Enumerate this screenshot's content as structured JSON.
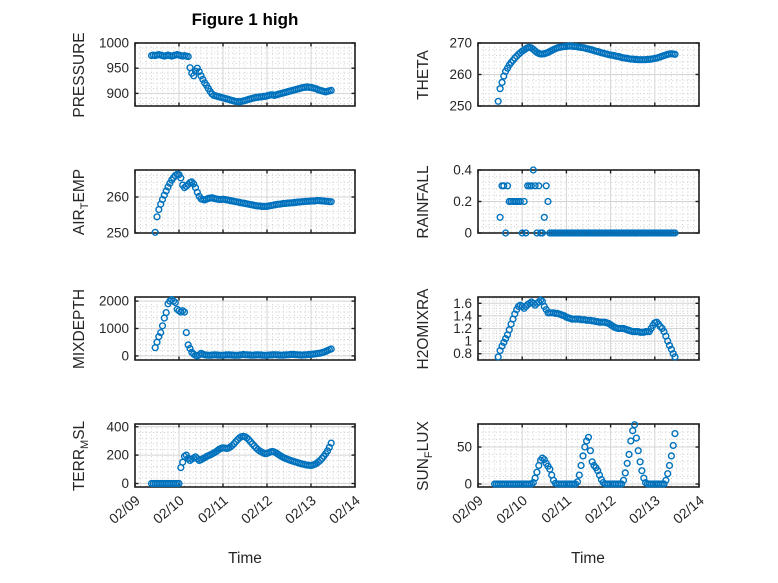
{
  "figure": {
    "title": "Figure 1 high",
    "xlabel": "Time",
    "marker_color": "#0072BD",
    "axis_color": "#1f1f1f",
    "grid_color": "#d4d4d4",
    "minor_grid_color": "#c9c9c9"
  },
  "chart_data": {
    "type": "scatter",
    "layout": "4 rows x 2 columns, shared time axis",
    "x_axis": {
      "label": "Time",
      "tick_labels": [
        "02/09",
        "02/10",
        "02/11",
        "02/12",
        "02/13",
        "02/14"
      ],
      "tick_values": [
        0,
        1,
        2,
        3,
        4,
        5
      ],
      "xlim": [
        0,
        5
      ],
      "minor_step": 0.125,
      "unit": "days since 02/09 00:00"
    },
    "x": [
      0.375,
      0.417,
      0.458,
      0.5,
      0.542,
      0.583,
      0.625,
      0.667,
      0.708,
      0.75,
      0.792,
      0.833,
      0.875,
      0.917,
      0.958,
      1.0,
      1.042,
      1.083,
      1.125,
      1.167,
      1.208,
      1.25,
      1.292,
      1.333,
      1.375,
      1.417,
      1.458,
      1.5,
      1.542,
      1.583,
      1.625,
      1.667,
      1.708,
      1.75,
      1.792,
      1.833,
      1.875,
      1.917,
      1.958,
      2.0,
      2.042,
      2.083,
      2.125,
      2.167,
      2.208,
      2.25,
      2.292,
      2.333,
      2.375,
      2.417,
      2.458,
      2.5,
      2.542,
      2.583,
      2.625,
      2.667,
      2.708,
      2.75,
      2.792,
      2.833,
      2.875,
      2.917,
      2.958,
      3.0,
      3.042,
      3.083,
      3.125,
      3.167,
      3.208,
      3.25,
      3.292,
      3.333,
      3.375,
      3.417,
      3.458,
      3.5,
      3.542,
      3.583,
      3.625,
      3.667,
      3.708,
      3.75,
      3.792,
      3.833,
      3.875,
      3.917,
      3.958,
      4.0,
      4.042,
      4.083,
      4.125,
      4.167,
      4.208,
      4.25,
      4.292,
      4.333,
      4.375,
      4.417,
      4.458
    ],
    "subplots": [
      {
        "name": "PRESSURE",
        "ylabel": {
          "pre": "PRESSURE",
          "sub": "",
          "post": ""
        },
        "ylim": [
          875,
          1000
        ],
        "yticks": [
          900,
          950,
          1000
        ],
        "ytick_labels": [
          "900",
          "950",
          "1000"
        ],
        "y_minor_step": 10,
        "values": [
          975,
          976,
          975,
          976,
          977,
          976,
          975,
          974,
          975,
          976,
          975,
          974,
          975,
          976,
          977,
          976,
          975,
          974,
          975,
          974,
          973,
          951,
          940,
          935,
          944,
          950,
          943,
          935,
          928,
          921,
          916,
          910,
          904,
          899,
          896,
          895,
          894,
          893,
          892,
          891,
          890,
          889,
          888,
          887,
          886,
          885,
          884,
          884,
          883,
          884,
          885,
          886,
          887,
          888,
          889,
          890,
          891,
          892,
          892,
          893,
          893,
          894,
          894,
          895,
          896,
          897,
          897,
          896,
          897,
          898,
          899,
          900,
          901,
          902,
          903,
          904,
          905,
          906,
          907,
          908,
          909,
          910,
          911,
          912,
          912,
          913,
          912,
          912,
          911,
          910,
          909,
          907,
          906,
          905,
          904,
          903,
          904,
          905,
          906
        ]
      },
      {
        "name": "THETA",
        "ylabel": {
          "pre": "THETA",
          "sub": "",
          "post": ""
        },
        "ylim": [
          250,
          270
        ],
        "yticks": [
          250,
          260,
          270
        ],
        "ytick_labels": [
          "250",
          "260",
          "270"
        ],
        "y_minor_step": 2,
        "values": [
          null,
          null,
          251.5,
          255.5,
          257.5,
          259.5,
          261,
          262,
          263,
          263.8,
          264.5,
          265.2,
          265.8,
          266.4,
          266.9,
          267.4,
          267.8,
          268.2,
          268.5,
          268.6,
          268.4,
          268,
          267.5,
          267,
          266.7,
          266.5,
          266.5,
          266.6,
          266.8,
          267,
          267.3,
          267.6,
          267.9,
          268.2,
          268.4,
          268.6,
          268.7,
          268.8,
          268.9,
          268.9,
          269,
          269,
          269,
          268.9,
          268.9,
          268.8,
          268.7,
          268.6,
          268.5,
          268.4,
          268.2,
          268.1,
          267.9,
          267.8,
          267.6,
          267.4,
          267.3,
          267.1,
          266.9,
          266.8,
          266.6,
          266.5,
          266.3,
          266.2,
          266.1,
          266,
          265.8,
          265.7,
          265.6,
          265.4,
          265.3,
          265.2,
          265.1,
          265,
          264.9,
          264.9,
          264.8,
          264.8,
          264.7,
          264.7,
          264.7,
          264.7,
          264.7,
          264.8,
          264.8,
          264.9,
          265,
          265.1,
          265.2,
          265.4,
          265.6,
          265.8,
          266,
          266.2,
          266.4,
          266.5,
          266.6,
          266.5,
          266.4
        ]
      },
      {
        "name": "AIR_TEMP",
        "ylabel": {
          "pre": "AIR",
          "sub": "T",
          "post": "EMP"
        },
        "ylim": [
          250,
          267.5
        ],
        "yticks": [
          250,
          260
        ],
        "ytick_labels": [
          "250",
          "260"
        ],
        "y_minor_step": 2,
        "values": [
          null,
          null,
          250.2,
          254.5,
          256.5,
          258,
          259.3,
          260.5,
          261.7,
          262.8,
          263.8,
          264.7,
          265.4,
          266,
          266.3,
          266.2,
          265.3,
          263.3,
          262.6,
          263,
          263.5,
          264,
          264.2,
          263.6,
          262.6,
          261.3,
          260.2,
          259.5,
          259.3,
          259.2,
          259.4,
          259.6,
          259.7,
          259.8,
          259.6,
          259.5,
          259.4,
          259.3,
          259.3,
          259.4,
          259.3,
          259.2,
          259.1,
          259,
          258.9,
          258.8,
          258.7,
          258.6,
          258.5,
          258.4,
          258.3,
          258.2,
          258.1,
          258,
          257.9,
          257.8,
          257.7,
          257.6,
          257.5,
          257.5,
          257.4,
          257.4,
          257.4,
          257.4,
          257.5,
          257.6,
          257.7,
          257.8,
          257.9,
          258,
          258,
          258.1,
          258.2,
          258.2,
          258.3,
          258.3,
          258.4,
          258.4,
          258.5,
          258.5,
          258.6,
          258.6,
          258.7,
          258.7,
          258.8,
          258.8,
          258.8,
          258.9,
          258.9,
          258.9,
          259,
          259,
          259,
          258.9,
          258.9,
          258.8,
          258.8,
          258.7,
          258.7
        ]
      },
      {
        "name": "RAINFALL",
        "ylabel": {
          "pre": "RAINFALL",
          "sub": "",
          "post": ""
        },
        "ylim": [
          0,
          0.4
        ],
        "yticks": [
          0,
          0.2,
          0.4
        ],
        "ytick_labels": [
          "0",
          "0.2",
          "0.4"
        ],
        "y_minor_step": 0.04,
        "values": [
          null,
          null,
          null,
          0.1,
          0.3,
          0.3,
          0,
          0.3,
          0.2,
          0.2,
          0.2,
          0.2,
          0.2,
          0.2,
          0.2,
          0,
          0.2,
          0,
          0.3,
          0.3,
          0.3,
          0.4,
          0.3,
          0,
          0.3,
          0,
          0,
          0.1,
          0.3,
          0.2,
          0,
          0,
          0,
          0,
          0,
          0,
          0,
          0,
          0,
          0,
          0,
          0,
          0,
          0,
          0,
          0,
          0,
          0,
          0,
          0,
          0,
          0,
          0,
          0,
          0,
          0,
          0,
          0,
          0,
          0,
          0,
          0,
          0,
          0,
          0,
          0,
          0,
          0,
          0,
          0,
          0,
          0,
          0,
          0,
          0,
          0,
          0,
          0,
          0,
          0,
          0,
          0,
          0,
          0,
          0,
          0,
          0,
          0,
          0,
          0,
          0,
          0,
          0,
          0,
          0,
          0,
          0,
          0,
          0
        ]
      },
      {
        "name": "MIXDEPTH",
        "ylabel": {
          "pre": "MIXDEPTH",
          "sub": "",
          "post": ""
        },
        "ylim": [
          -150,
          2150
        ],
        "yticks": [
          0,
          1000,
          2000
        ],
        "ytick_labels": [
          "0",
          "1000",
          "2000"
        ],
        "y_minor_step": 200,
        "values": [
          null,
          null,
          300,
          500,
          700,
          850,
          1100,
          1380,
          1580,
          1900,
          2000,
          2050,
          2000,
          1950,
          1700,
          1650,
          1600,
          1650,
          1600,
          850,
          400,
          270,
          130,
          60,
          20,
          0,
          40,
          90,
          60,
          40,
          30,
          25,
          20,
          30,
          40,
          35,
          30,
          25,
          20,
          25,
          30,
          35,
          40,
          35,
          30,
          25,
          20,
          25,
          30,
          40,
          50,
          45,
          40,
          35,
          30,
          25,
          30,
          35,
          40,
          35,
          30,
          25,
          20,
          25,
          30,
          35,
          40,
          45,
          40,
          35,
          30,
          25,
          30,
          35,
          40,
          45,
          50,
          55,
          50,
          45,
          40,
          35,
          30,
          35,
          40,
          45,
          50,
          55,
          60,
          70,
          80,
          90,
          100,
          120,
          140,
          165,
          195,
          225,
          250
        ]
      },
      {
        "name": "H2OMIXRA",
        "ylabel": {
          "pre": "H2OMIXRA",
          "sub": "",
          "post": ""
        },
        "ylim": [
          0.7,
          1.7
        ],
        "yticks": [
          0.8,
          1,
          1.2,
          1.4,
          1.6
        ],
        "ytick_labels": [
          "0.8",
          "1",
          "1.2",
          "1.4",
          "1.6"
        ],
        "y_minor_step": 0.04,
        "values": [
          null,
          null,
          0.75,
          0.85,
          0.92,
          0.98,
          1.04,
          1.1,
          1.18,
          1.27,
          1.35,
          1.43,
          1.5,
          1.55,
          1.57,
          1.55,
          1.52,
          1.55,
          1.58,
          1.6,
          1.62,
          1.6,
          1.57,
          1.6,
          1.62,
          1.65,
          1.63,
          1.55,
          1.5,
          1.45,
          1.45,
          1.45,
          1.45,
          1.44,
          1.44,
          1.43,
          1.42,
          1.41,
          1.4,
          1.38,
          1.37,
          1.36,
          1.35,
          1.35,
          1.35,
          1.35,
          1.35,
          1.34,
          1.34,
          1.34,
          1.33,
          1.33,
          1.33,
          1.32,
          1.32,
          1.31,
          1.31,
          1.3,
          1.3,
          1.3,
          1.3,
          1.29,
          1.28,
          1.26,
          1.24,
          1.22,
          1.21,
          1.2,
          1.2,
          1.2,
          1.2,
          1.19,
          1.18,
          1.17,
          1.16,
          1.15,
          1.15,
          1.15,
          1.15,
          1.14,
          1.14,
          1.14,
          1.15,
          1.15,
          1.15,
          1.2,
          1.25,
          1.29,
          1.3,
          1.27,
          1.23,
          1.2,
          1.15,
          1.08,
          1.0,
          0.93,
          0.87,
          0.8,
          0.75
        ]
      },
      {
        "name": "TERR_MSL",
        "ylabel": {
          "pre": "TERR",
          "sub": "M",
          "post": "SL"
        },
        "ylim": [
          -25,
          420
        ],
        "yticks": [
          0,
          200,
          400
        ],
        "ytick_labels": [
          "0",
          "200",
          "400"
        ],
        "y_minor_step": 40,
        "values": [
          0,
          0,
          0,
          0,
          0,
          0,
          0,
          0,
          0,
          0,
          0,
          0,
          0,
          0,
          0,
          0,
          112,
          150,
          192,
          200,
          178,
          163,
          172,
          180,
          188,
          175,
          162,
          168,
          175,
          182,
          190,
          196,
          202,
          208,
          215,
          223,
          232,
          242,
          248,
          252,
          250,
          247,
          250,
          258,
          268,
          280,
          295,
          310,
          322,
          330,
          333,
          330,
          322,
          310,
          295,
          280,
          265,
          252,
          240,
          230,
          222,
          215,
          210,
          212,
          218,
          223,
          226,
          222,
          215,
          207,
          198,
          190,
          183,
          177,
          172,
          167,
          162,
          158,
          154,
          150,
          146,
          142,
          138,
          135,
          132,
          130,
          128,
          127,
          130,
          135,
          142,
          152,
          163,
          176,
          192,
          210,
          230,
          255,
          285
        ]
      },
      {
        "name": "SUN_FLUX",
        "ylabel": {
          "pre": "SUN",
          "sub": "F",
          "post": "LUX"
        },
        "ylim": [
          -4,
          81
        ],
        "yticks": [
          0,
          50
        ],
        "ytick_labels": [
          "0",
          "50"
        ],
        "y_minor_step": 10,
        "values": [
          0,
          0,
          0,
          0,
          0,
          0,
          0,
          0,
          0,
          0,
          0,
          0,
          0,
          0,
          0,
          0,
          0,
          0,
          0,
          0,
          0,
          2,
          8,
          16,
          25,
          32,
          35,
          33,
          28,
          24,
          20,
          12,
          5,
          1,
          0,
          0,
          0,
          0,
          0,
          0,
          0,
          0,
          0,
          0,
          0,
          3,
          12,
          25,
          38,
          50,
          58,
          63,
          45,
          30,
          25,
          22,
          18,
          12,
          6,
          2,
          0,
          0,
          0,
          0,
          0,
          0,
          0,
          0,
          0,
          0,
          5,
          15,
          28,
          40,
          58,
          72,
          80,
          62,
          45,
          30,
          18,
          8,
          2,
          0,
          0,
          0,
          0,
          0,
          0,
          0,
          0,
          0,
          0,
          5,
          14,
          25,
          38,
          52,
          68
        ]
      }
    ]
  }
}
